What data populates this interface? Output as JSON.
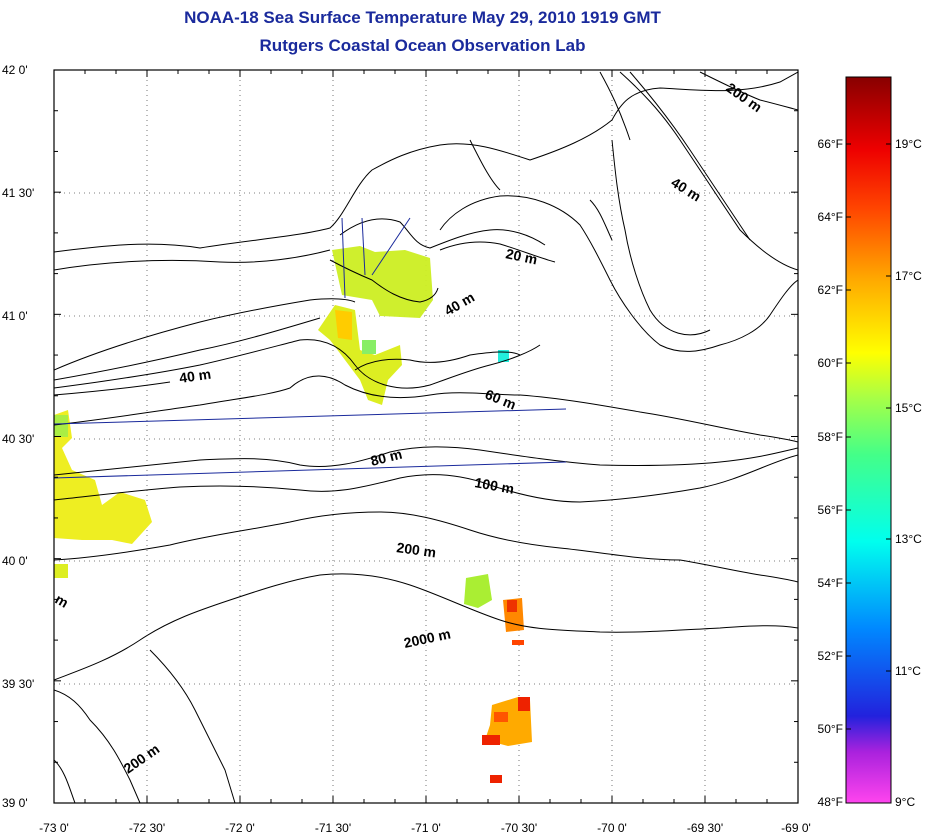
{
  "title": "NOAA-18 Sea Surface Temperature May 29, 2010 1919 GMT",
  "subtitle": "Rutgers Coastal Ocean Observation Lab",
  "lat_ticks": [
    "42 0'",
    "41 30'",
    "41 0'",
    "40 30'",
    "40 0'",
    "39 30'",
    "39 0'"
  ],
  "lon_ticks": [
    "-73 0'",
    "-72 30'",
    "-72 0'",
    "-71 30'",
    "-71 0'",
    "-70 30'",
    "-70 0'",
    "-69 30'",
    "-69 0'"
  ],
  "contour_labels": [
    "20 m",
    "40 m",
    "40 m",
    "40 m",
    "60 m",
    "80 m",
    "100 m",
    "200 m",
    "200 m",
    "2000 m",
    "200 m",
    "m"
  ],
  "colorbar": {
    "f_labels": [
      "66°F",
      "64°F",
      "62°F",
      "60°F",
      "58°F",
      "56°F",
      "54°F",
      "52°F",
      "50°F",
      "48°F"
    ],
    "c_labels": [
      "19°C",
      "17°C",
      "15°C",
      "13°C",
      "11°C",
      "9°C"
    ]
  },
  "colors": {
    "title": "#1a2a9c",
    "transect": "#1a2a9c",
    "contour": "#000000"
  }
}
